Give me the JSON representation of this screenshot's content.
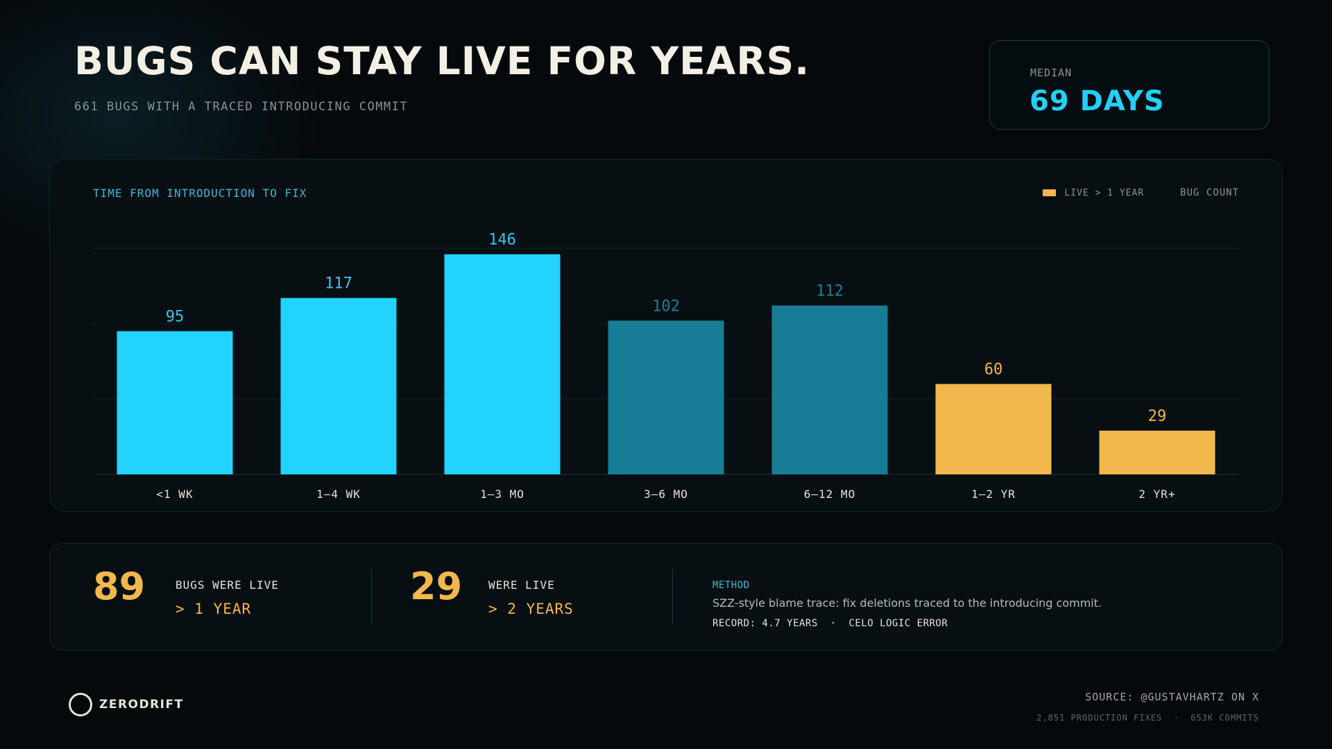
{
  "header": {
    "title": "BUGS CAN STAY LIVE FOR YEARS.",
    "subtitle": "661 BUGS WITH A TRACED INTRODUCING COMMIT"
  },
  "median": {
    "label": "MEDIAN",
    "value": "69 DAYS"
  },
  "chart_data": {
    "type": "bar",
    "title": "TIME FROM INTRODUCTION TO FIX",
    "ylabel": "BUG COUNT",
    "categories": [
      "<1 WK",
      "1–4 WK",
      "1–3 MO",
      "3–6 MO",
      "6–12 MO",
      "1–2 YR",
      "2 YR+"
    ],
    "values": [
      95,
      117,
      146,
      102,
      112,
      60,
      29
    ],
    "value_labels": [
      "95",
      "117",
      "146",
      "102",
      "112",
      "60",
      "29"
    ],
    "ylim": [
      0,
      150
    ],
    "grid": true,
    "legend": {
      "position": "top-right",
      "entries": [
        "LIVE > 1 YEAR"
      ]
    },
    "colors": [
      "#22d3fe",
      "#22d3fe",
      "#22d3fe",
      "#177c95",
      "#177c95",
      "#f2b84d",
      "#f2b84d"
    ],
    "label_colors": [
      "#3fc3e8",
      "#3fc3e8",
      "#3fc3e8",
      "#1f7e96",
      "#1f7e96",
      "#f2b84d",
      "#f2b84d"
    ]
  },
  "stats": [
    {
      "number": "89",
      "line1": "BUGS WERE LIVE",
      "line2": "> 1 YEAR"
    },
    {
      "number": "29",
      "line1": "WERE LIVE",
      "line2": "> 2 YEARS"
    }
  ],
  "method": {
    "label": "METHOD",
    "text": "SZZ-style blame trace: fix deletions traced to the introducing commit.",
    "record": "RECORD: 4.7 YEARS  ·  CELO LOGIC ERROR"
  },
  "brand": {
    "name": "ZERODRIFT"
  },
  "footer": {
    "source": "SOURCE: @GUSTAVHARTZ ON X",
    "meta": "2,851 PRODUCTION FIXES  ·  653K COMMITS"
  }
}
